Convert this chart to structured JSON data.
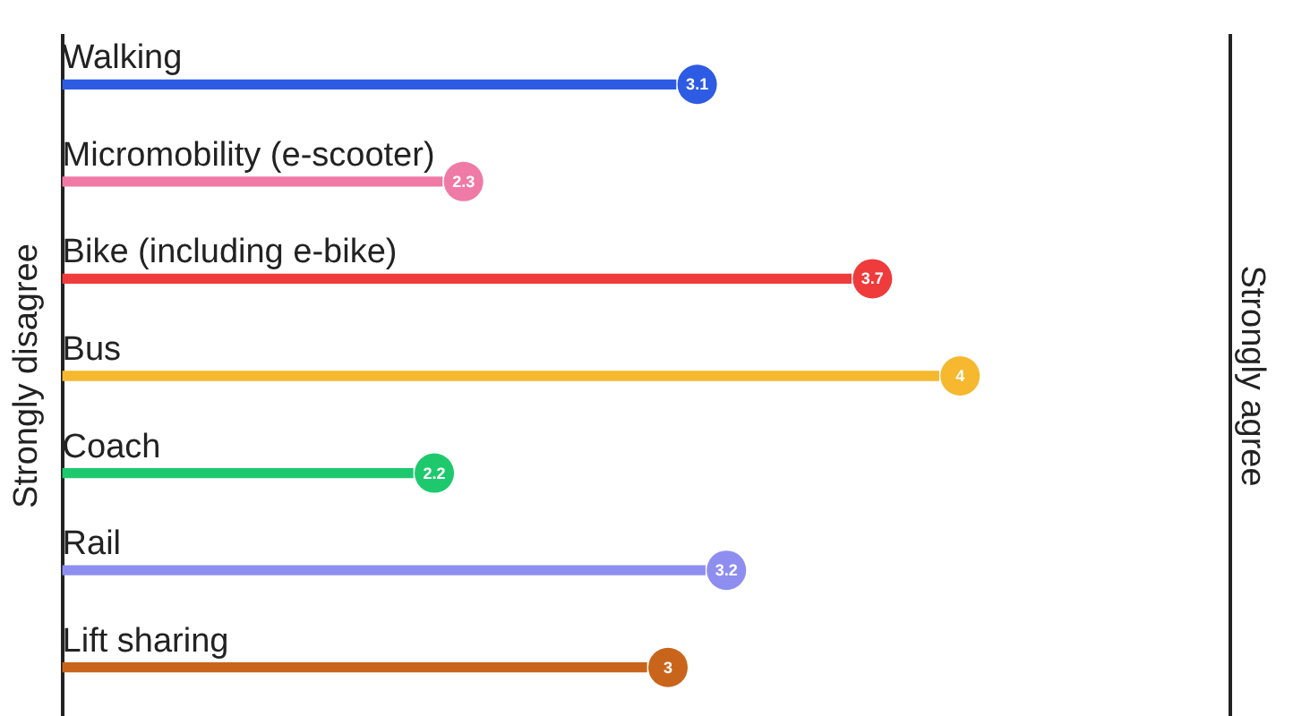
{
  "chart_data": {
    "type": "bar",
    "orientation": "horizontal",
    "ylabel": "Strongly disagree",
    "y2label": "Strongly agree",
    "categories": [
      "Walking",
      "Micromobility (e-scooter)",
      "Bike (including e-bike)",
      "Bus",
      "Coach",
      "Rail",
      "Lift sharing"
    ],
    "values": [
      3.1,
      2.3,
      3.7,
      4,
      2.2,
      3.2,
      3
    ],
    "colors": [
      "#2d5be3",
      "#f07aa6",
      "#ef3b3b",
      "#f5b82e",
      "#1ec96e",
      "#8e8ef0",
      "#c8651b"
    ],
    "xlim": [
      1,
      5
    ],
    "data_labels": true,
    "legend": false
  }
}
